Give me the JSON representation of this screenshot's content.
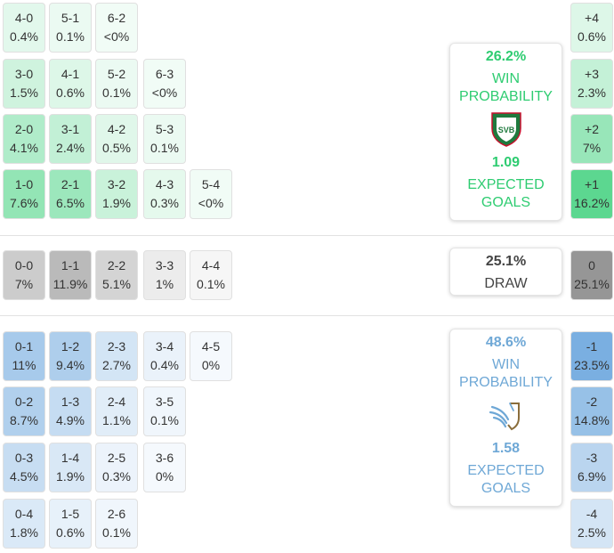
{
  "colors": {
    "home_accent": "#2ecc71",
    "away_accent": "#6fa8d6",
    "draw_text": "#444444"
  },
  "home": {
    "win_pct": "26.2%",
    "win_label": "WIN\nPROBABILITY",
    "xg": "1.09",
    "xg_label": "EXPECTED\nGOALS",
    "logo_icon": "svb-shield-crest-icon",
    "logo_text": "SVB",
    "rows": [
      [
        [
          "4-0",
          "0.4%"
        ],
        [
          "5-1",
          "0.1%"
        ],
        [
          "6-2",
          "<0%"
        ]
      ],
      [
        [
          "3-0",
          "1.5%"
        ],
        [
          "4-1",
          "0.6%"
        ],
        [
          "5-2",
          "0.1%"
        ],
        [
          "6-3",
          "<0%"
        ]
      ],
      [
        [
          "2-0",
          "4.1%"
        ],
        [
          "3-1",
          "2.4%"
        ],
        [
          "4-2",
          "0.5%"
        ],
        [
          "5-3",
          "0.1%"
        ]
      ],
      [
        [
          "1-0",
          "7.6%"
        ],
        [
          "2-1",
          "6.5%"
        ],
        [
          "3-2",
          "1.9%"
        ],
        [
          "4-3",
          "0.3%"
        ],
        [
          "5-4",
          "<0%"
        ]
      ]
    ],
    "margins": [
      [
        "+4",
        "0.6%"
      ],
      [
        "+3",
        "2.3%"
      ],
      [
        "+2",
        "7%"
      ],
      [
        "+1",
        "16.2%"
      ]
    ]
  },
  "draw": {
    "pct": "25.1%",
    "label": "DRAW",
    "row": [
      [
        "0-0",
        "7%"
      ],
      [
        "1-1",
        "11.9%"
      ],
      [
        "2-2",
        "5.1%"
      ],
      [
        "3-3",
        "1%"
      ],
      [
        "4-4",
        "0.1%"
      ]
    ],
    "margin": [
      "0",
      "25.1%"
    ]
  },
  "away": {
    "win_pct": "48.6%",
    "win_label": "WIN\nPROBABILITY",
    "xg": "1.58",
    "xg_label": "EXPECTED\nGOALS",
    "logo_icon": "wing-emblem-crest-icon",
    "rows": [
      [
        [
          "0-1",
          "11%"
        ],
        [
          "1-2",
          "9.4%"
        ],
        [
          "2-3",
          "2.7%"
        ],
        [
          "3-4",
          "0.4%"
        ],
        [
          "4-5",
          "0%"
        ]
      ],
      [
        [
          "0-2",
          "8.7%"
        ],
        [
          "1-3",
          "4.9%"
        ],
        [
          "2-4",
          "1.1%"
        ],
        [
          "3-5",
          "0.1%"
        ]
      ],
      [
        [
          "0-3",
          "4.5%"
        ],
        [
          "1-4",
          "1.9%"
        ],
        [
          "2-5",
          "0.3%"
        ],
        [
          "3-6",
          "0%"
        ]
      ],
      [
        [
          "0-4",
          "1.8%"
        ],
        [
          "1-5",
          "0.6%"
        ],
        [
          "2-6",
          "0.1%"
        ]
      ]
    ],
    "margins": [
      [
        "-1",
        "23.5%"
      ],
      [
        "-2",
        "14.8%"
      ],
      [
        "-3",
        "6.9%"
      ],
      [
        "-4",
        "2.5%"
      ]
    ]
  }
}
